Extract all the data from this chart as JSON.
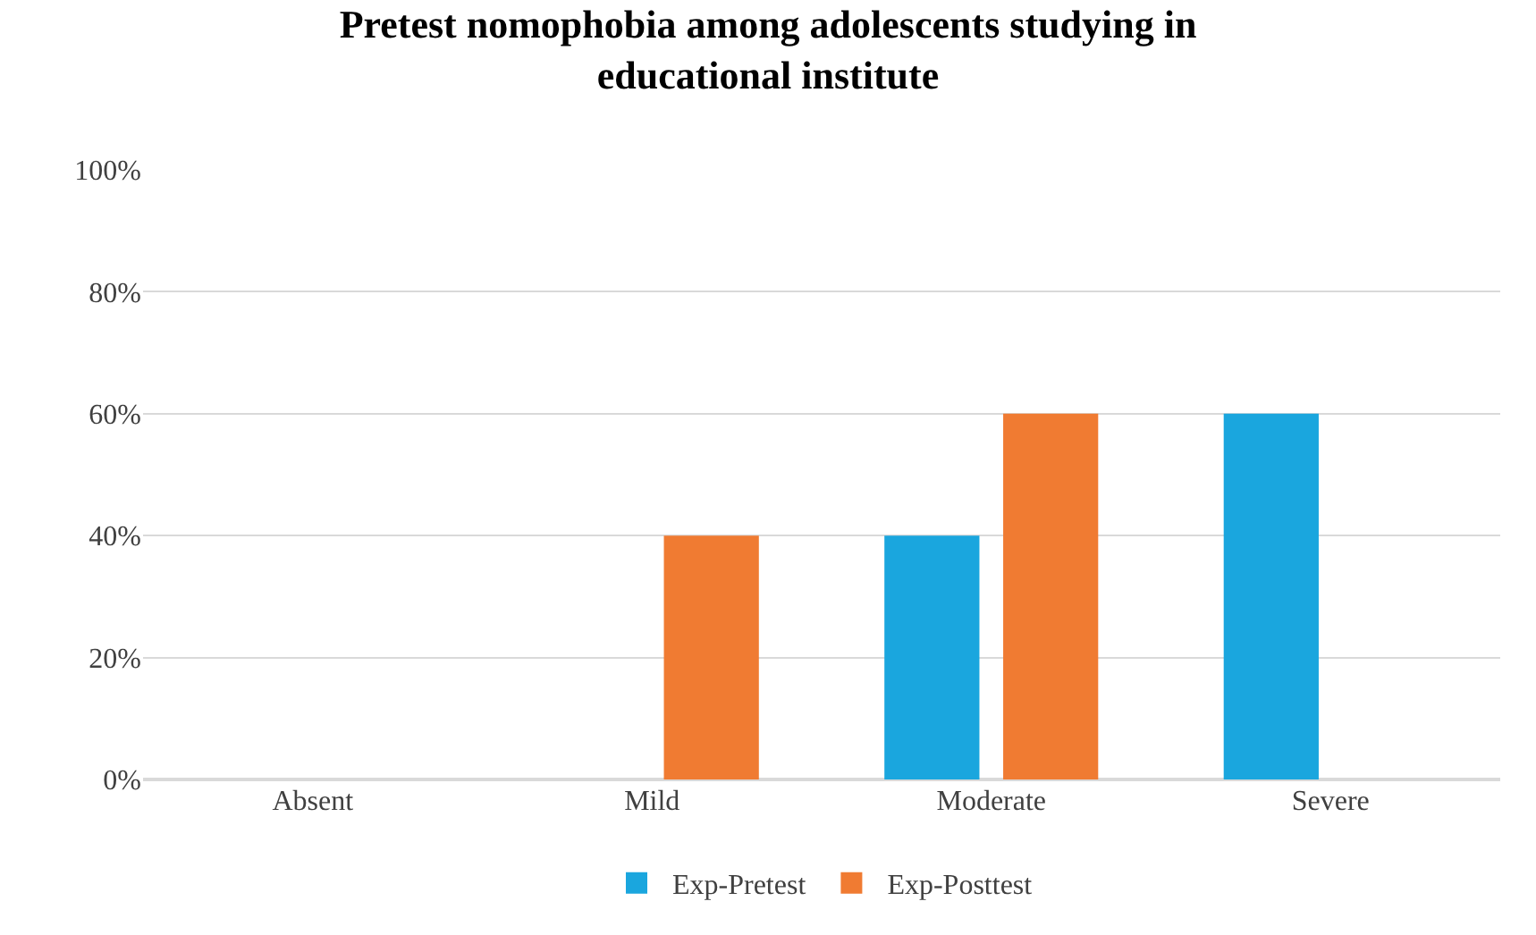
{
  "chart_data": {
    "type": "bar",
    "title": "Pretest nomophobia among adolescents studying in\neducational institute",
    "categories": [
      "Absent",
      "Mild",
      "Moderate",
      "Severe"
    ],
    "series": [
      {
        "name": "Exp-Pretest",
        "color": "#1aa6de",
        "values": [
          0,
          0,
          40,
          60
        ]
      },
      {
        "name": "Exp-Posttest",
        "color": "#f07b32",
        "values": [
          0,
          40,
          60,
          0
        ]
      }
    ],
    "ylim": [
      0,
      100
    ],
    "yticks": [
      {
        "value": 0,
        "label": "0%"
      },
      {
        "value": 20,
        "label": "20%"
      },
      {
        "value": 40,
        "label": "40%"
      },
      {
        "value": 60,
        "label": "60%"
      },
      {
        "value": 80,
        "label": "80%"
      },
      {
        "value": 100,
        "label": "100%"
      }
    ],
    "grid": "y",
    "legend": "bottom"
  }
}
